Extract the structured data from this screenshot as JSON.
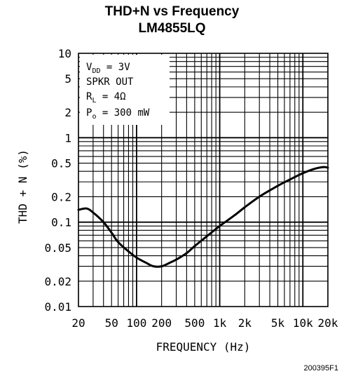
{
  "title": "THD+N vs Frequency",
  "subtitle": "LM4855LQ",
  "figure_id": "200395F1",
  "chart_data": {
    "type": "line",
    "title": "THD+N vs Frequency",
    "subtitle": "LM4855LQ",
    "xlabel": "FREQUENCY (Hz)",
    "ylabel": "THD + N (%)",
    "x_scale": "log",
    "y_scale": "log",
    "xlim": [
      20,
      20000
    ],
    "ylim": [
      0.01,
      10
    ],
    "grid": true,
    "x_ticks": [
      {
        "value": 20,
        "label": "20"
      },
      {
        "value": 50,
        "label": "50"
      },
      {
        "value": 100,
        "label": "100"
      },
      {
        "value": 200,
        "label": "200"
      },
      {
        "value": 500,
        "label": "500"
      },
      {
        "value": 1000,
        "label": "1k"
      },
      {
        "value": 2000,
        "label": "2k"
      },
      {
        "value": 5000,
        "label": "5k"
      },
      {
        "value": 10000,
        "label": "10k"
      },
      {
        "value": 20000,
        "label": "20k"
      }
    ],
    "y_ticks": [
      {
        "value": 0.01,
        "label": "0.01"
      },
      {
        "value": 0.02,
        "label": "0.02"
      },
      {
        "value": 0.05,
        "label": "0.05"
      },
      {
        "value": 0.1,
        "label": "0.1"
      },
      {
        "value": 0.2,
        "label": "0.2"
      },
      {
        "value": 0.5,
        "label": "0.5"
      },
      {
        "value": 1,
        "label": "1"
      },
      {
        "value": 2,
        "label": "2"
      },
      {
        "value": 5,
        "label": "5"
      },
      {
        "value": 10,
        "label": "10"
      }
    ],
    "conditions": {
      "vdd": {
        "main": "V",
        "sub": "DD",
        "rest": " = 3V"
      },
      "output": {
        "main": "SPKR OUT"
      },
      "load": {
        "main": "R",
        "sub": "L",
        "rest": " = 4Ω"
      },
      "power": {
        "main": "P",
        "sub": "o",
        "rest": " = 300 mW"
      }
    },
    "series": [
      {
        "x": [
          20,
          25,
          30,
          40,
          50,
          60,
          80,
          100,
          130,
          160,
          200,
          250,
          300,
          400,
          500,
          700,
          1000,
          1500,
          2000,
          3000,
          5000,
          7000,
          10000,
          14000,
          18000,
          20000
        ],
        "y": [
          0.14,
          0.145,
          0.13,
          0.1,
          0.075,
          0.058,
          0.045,
          0.038,
          0.033,
          0.03,
          0.03,
          0.033,
          0.036,
          0.043,
          0.052,
          0.068,
          0.09,
          0.12,
          0.15,
          0.2,
          0.27,
          0.32,
          0.38,
          0.43,
          0.45,
          0.44
        ]
      }
    ]
  }
}
